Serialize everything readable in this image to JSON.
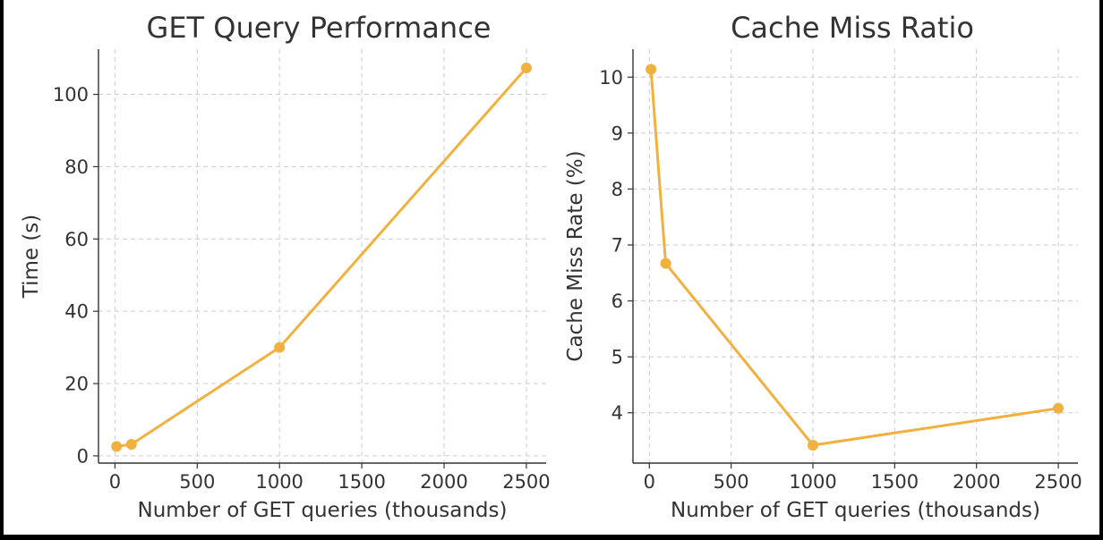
{
  "chart_data": [
    {
      "type": "line",
      "title": "GET Query Performance",
      "xlabel": "Number of GET queries (thousands)",
      "ylabel": "Time (s)",
      "x": [
        10,
        100,
        1000,
        2500
      ],
      "series": [
        {
          "values": [
            2.6,
            3.2,
            30.0,
            107.3
          ]
        }
      ],
      "xlim": [
        -100,
        2620
      ],
      "ylim": [
        -2,
        112.5
      ],
      "xticks": [
        0,
        500,
        1000,
        1500,
        2000,
        2500
      ],
      "yticks": [
        0,
        20,
        40,
        60,
        80,
        100
      ],
      "grid": true,
      "color": "#f0b13f"
    },
    {
      "type": "line",
      "title": "Cache Miss Ratio",
      "xlabel": "Number of GET queries (thousands)",
      "ylabel": "Cache Miss Rate (%)",
      "x": [
        10,
        100,
        1000,
        2500
      ],
      "series": [
        {
          "values": [
            10.14,
            6.67,
            3.42,
            4.08
          ]
        }
      ],
      "xlim": [
        -100,
        2620
      ],
      "ylim": [
        3.1,
        10.5
      ],
      "xticks": [
        0,
        500,
        1000,
        1500,
        2000,
        2500
      ],
      "yticks": [
        4,
        5,
        6,
        7,
        8,
        9,
        10
      ],
      "grid": true,
      "color": "#f0b13f"
    }
  ]
}
